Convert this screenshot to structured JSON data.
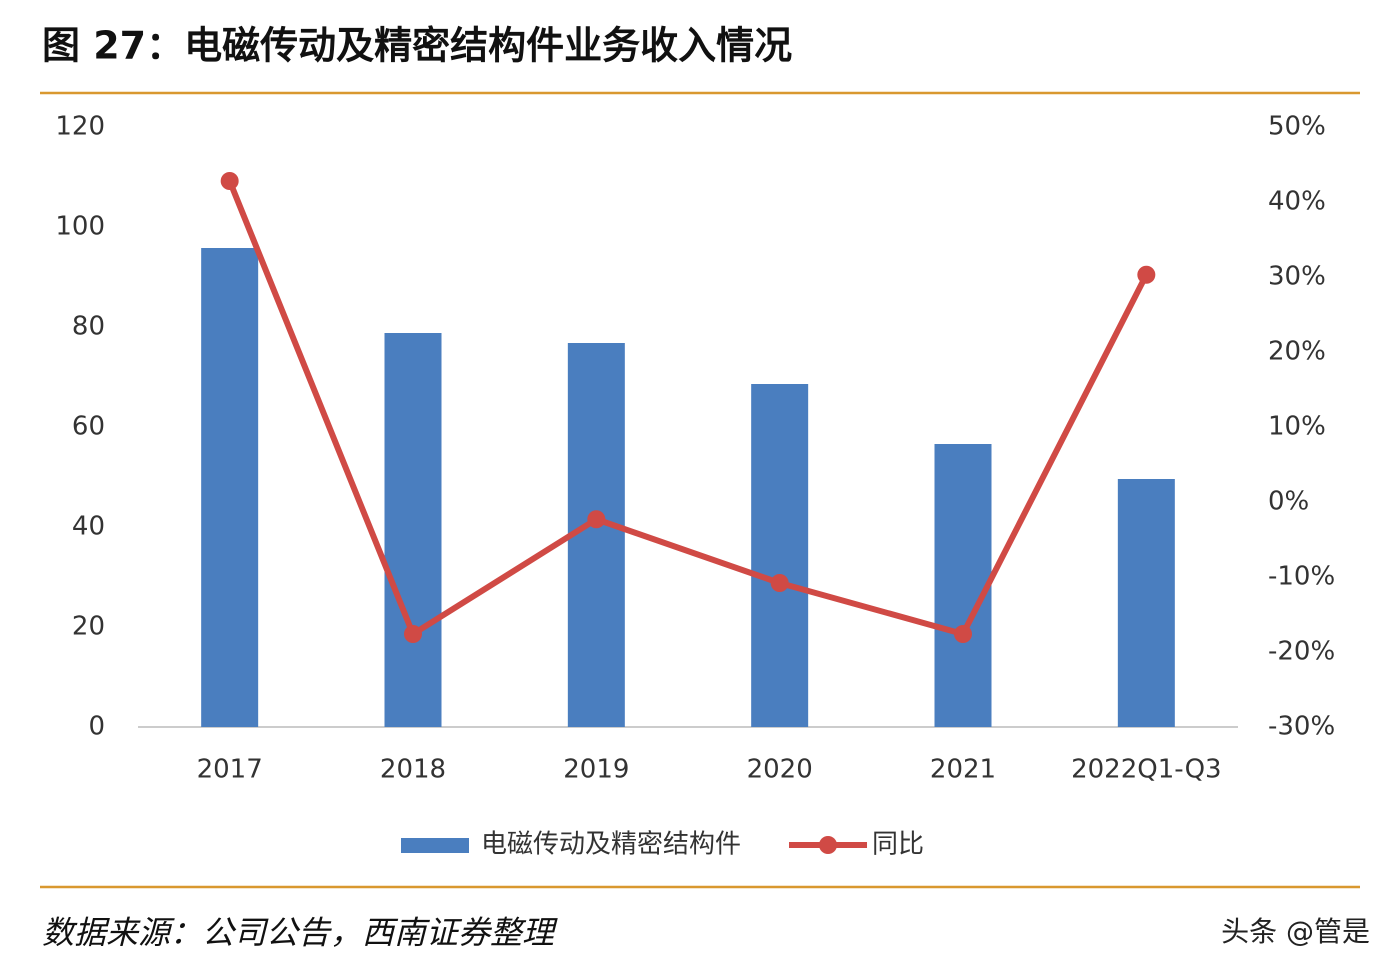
{
  "chart_data": {
    "type": "bar-line",
    "title": "图 27：电磁传动及精密结构件业务收入情况",
    "categories": [
      "2017",
      "2018",
      "2019",
      "2020",
      "2021",
      "2022Q1-Q3"
    ],
    "series": [
      {
        "name": "电磁传动及精密结构件",
        "type": "bar",
        "color": "#4a7ebf",
        "values": [
          95.8,
          78.8,
          76.8,
          68.6,
          56.6,
          49.6
        ]
      },
      {
        "name": "同比",
        "type": "line",
        "axis": "y2",
        "color": "#d04a45",
        "values": [
          42.8,
          -17.6,
          -2.3,
          -10.8,
          -17.6,
          30.3
        ]
      }
    ],
    "ylim": [
      0,
      120
    ],
    "yticks": [
      0,
      20,
      40,
      60,
      80,
      100,
      120
    ],
    "y2lim": [
      -30,
      50
    ],
    "y2ticks": [
      {
        "value": -30,
        "label": "-30%"
      },
      {
        "value": -20,
        "label": "-20%"
      },
      {
        "value": -10,
        "label": "-10%"
      },
      {
        "value": 0,
        "label": "0%"
      },
      {
        "value": 10,
        "label": "10%"
      },
      {
        "value": 20,
        "label": "20%"
      },
      {
        "value": 30,
        "label": "30%"
      },
      {
        "value": 40,
        "label": "40%"
      },
      {
        "value": 50,
        "label": "50%"
      }
    ],
    "grid": false,
    "legend": "bottom",
    "source": "数据来源：公司公告，西南证券整理",
    "watermark": "头条 @管是"
  }
}
